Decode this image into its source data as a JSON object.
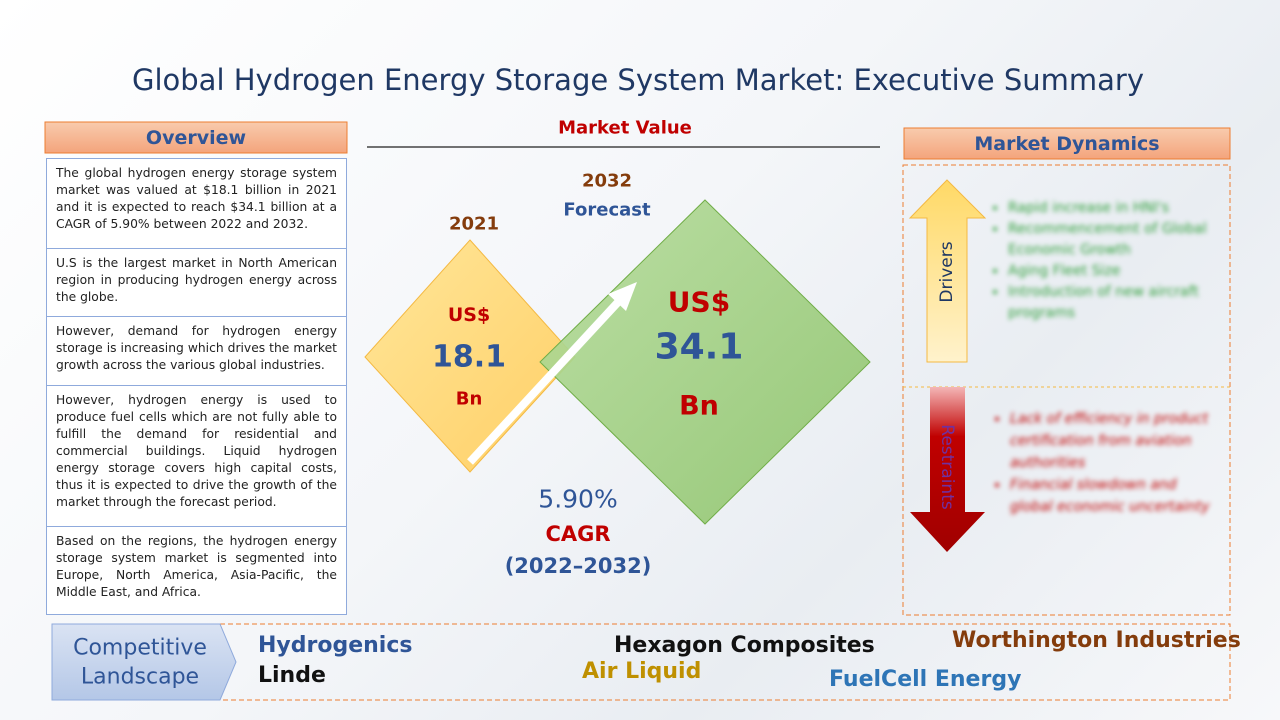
{
  "title": "Global Hydrogen Energy Storage System Market: Executive Summary",
  "overview": {
    "heading": "Overview",
    "paragraphs": [
      "The global hydrogen energy storage system market was valued at $18.1 billion in 2021 and it is expected to reach $34.1 billion at a CAGR of 5.90% between 2022 and 2032.",
      "U.S is the largest market in North American region in producing hydrogen energy across the globe.",
      "However, demand for hydrogen energy storage is increasing which drives the market growth across the various global industries.",
      "However, hydrogen energy is used to produce fuel cells which are not fully able to fulfill the demand for residential and commercial buildings. Liquid hydrogen energy storage covers high capital costs, thus it is expected to drive the growth of the market through the forecast period.",
      "Based on the regions, the hydrogen energy storage system market is segmented into Europe, North America, Asia-Pacific, the Middle East, and Africa."
    ]
  },
  "market_value": {
    "heading": "Market Value",
    "base": {
      "year": "2021",
      "currency": "US$",
      "value": "18.1",
      "unit": "Bn"
    },
    "forecast": {
      "year": "2032",
      "label": "Forecast",
      "currency": "US$",
      "value": "34.1",
      "unit": "Bn"
    },
    "cagr": {
      "value": "5.90%",
      "label": "CAGR",
      "period": "(2022–2032)"
    }
  },
  "market_dynamics": {
    "heading": "Market Dynamics",
    "drivers": {
      "label": "Drivers",
      "items": [
        "Rapid increase in HNI's",
        "Recommencement of Global Economic Growth",
        "Aging Fleet Size",
        "Introduction of new aircraft programs"
      ]
    },
    "restraints": {
      "label": "Restraints",
      "items": [
        "Lack of efficiency in product certification from aviation authorities",
        "Financial slowdown and global economic uncertainty"
      ]
    }
  },
  "competitive_landscape": {
    "label": [
      "Competitive",
      "Landscape"
    ],
    "companies": [
      "Hydrogenics",
      "Linde",
      "Hexagon Composites",
      "Air Liquid",
      "Worthington Industries",
      "FuelCell Energy"
    ]
  }
}
